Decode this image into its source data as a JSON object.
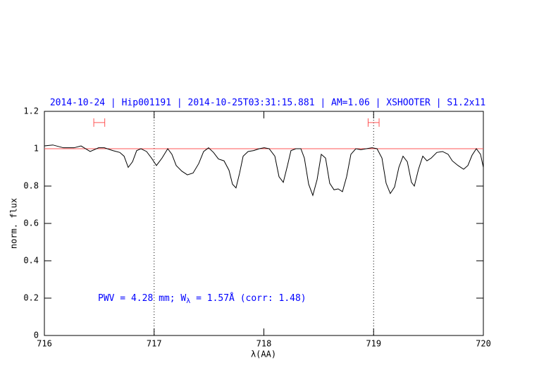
{
  "chart_data": {
    "type": "line",
    "title": "2014-10-24 | Hip001191 | 2014-10-25T03:31:15.881 | AM=1.06 | XSHOOTER | S1.2x11",
    "x_label": "λ(AA)",
    "y_label": "norm. flux",
    "annotation": [
      "PWV = 4.28 mm; W",
      "λ",
      " = 1.57Å (corr: 1.48)"
    ],
    "xlim": [
      716,
      720
    ],
    "ylim": [
      0,
      1.2
    ],
    "xticks": [
      716,
      717,
      718,
      719,
      720
    ],
    "yticks": [
      0,
      0.2,
      0.4,
      0.6,
      0.8,
      1,
      1.2
    ],
    "reference_line": {
      "value": 1,
      "color": "#ff5555"
    },
    "vlines": [
      717,
      719
    ],
    "ranges": {
      "color": "#ff5555",
      "y": 1.14,
      "spans": [
        [
          716.45,
          716.55
        ],
        [
          718.95,
          719.05
        ]
      ]
    },
    "series": [
      {
        "color": "#000000",
        "x": [
          716.0,
          716.077,
          716.173,
          716.27,
          716.334,
          716.417,
          716.494,
          716.546,
          716.623,
          716.687,
          716.726,
          716.764,
          716.803,
          716.841,
          716.88,
          716.931,
          716.976,
          717.021,
          717.072,
          717.124,
          717.162,
          717.201,
          717.252,
          717.303,
          717.355,
          717.406,
          717.451,
          717.496,
          717.541,
          717.586,
          717.637,
          717.682,
          717.714,
          717.746,
          717.779,
          717.811,
          717.856,
          717.907,
          717.958,
          718.003,
          718.048,
          718.1,
          718.138,
          718.177,
          718.215,
          718.247,
          718.292,
          718.337,
          718.369,
          718.408,
          718.446,
          718.485,
          718.523,
          718.562,
          718.6,
          718.639,
          718.677,
          718.716,
          718.754,
          718.793,
          718.838,
          718.883,
          718.934,
          718.986,
          719.031,
          719.076,
          719.114,
          719.152,
          719.191,
          719.23,
          719.268,
          719.307,
          719.345,
          719.371,
          719.409,
          719.448,
          719.486,
          719.525,
          719.576,
          719.628,
          719.679,
          719.717,
          719.769,
          719.82,
          719.859,
          719.897,
          719.936,
          719.974,
          720.0
        ],
        "values": [
          1.015,
          1.02,
          1.005,
          1.005,
          1.015,
          0.985,
          1.005,
          1.005,
          0.99,
          0.98,
          0.96,
          0.9,
          0.93,
          0.99,
          1.0,
          0.985,
          0.95,
          0.91,
          0.95,
          1.0,
          0.97,
          0.91,
          0.88,
          0.86,
          0.87,
          0.92,
          0.985,
          1.005,
          0.98,
          0.945,
          0.935,
          0.885,
          0.81,
          0.79,
          0.87,
          0.96,
          0.985,
          0.99,
          1.0,
          1.005,
          1.0,
          0.96,
          0.85,
          0.82,
          0.91,
          0.99,
          1.0,
          1.0,
          0.95,
          0.81,
          0.75,
          0.835,
          0.97,
          0.95,
          0.815,
          0.78,
          0.785,
          0.77,
          0.85,
          0.97,
          1.0,
          0.995,
          1.0,
          1.005,
          1.0,
          0.95,
          0.815,
          0.76,
          0.795,
          0.9,
          0.96,
          0.93,
          0.82,
          0.8,
          0.89,
          0.96,
          0.935,
          0.95,
          0.98,
          0.985,
          0.97,
          0.935,
          0.91,
          0.89,
          0.91,
          0.965,
          1.0,
          0.97,
          0.9
        ]
      }
    ]
  }
}
